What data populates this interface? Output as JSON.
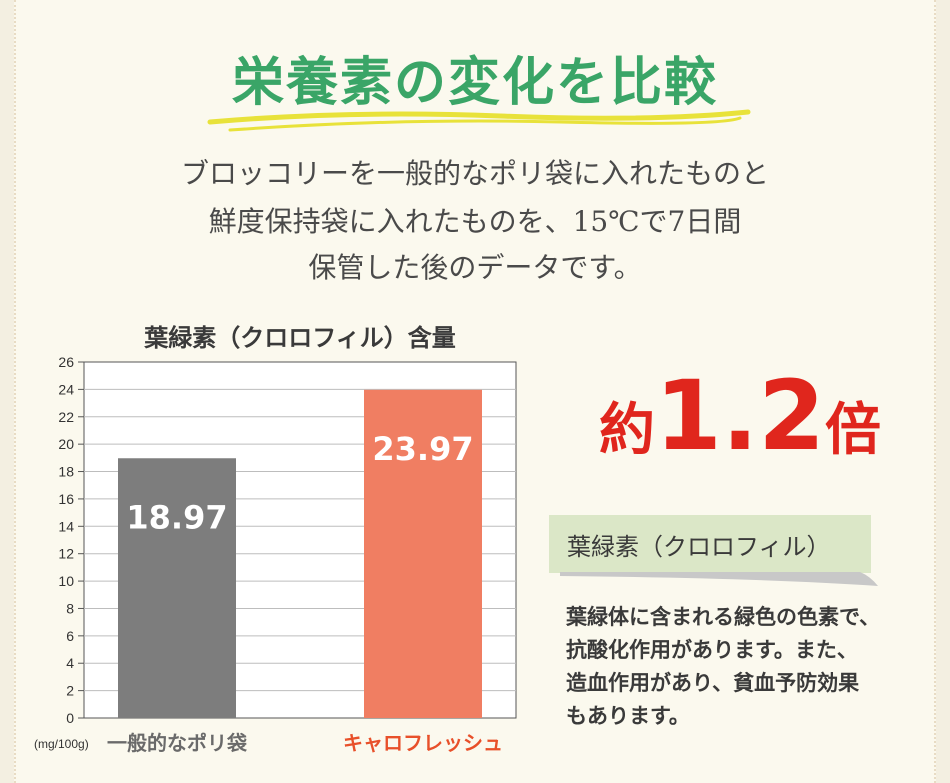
{
  "title": "栄養素の変化を比較",
  "intro": [
    "ブロッコリーを一般的なポリ袋に入れたものと",
    "鮮度保持袋に入れたものを、15℃で7日間",
    "保管した後のデータです。"
  ],
  "chart_data": {
    "type": "bar",
    "title": "葉緑素（クロロフィル）含量",
    "unit_label": "(mg/100g)",
    "categories": [
      "一般的なポリ袋",
      "キャロフレッシュ"
    ],
    "values": [
      18.97,
      23.97
    ],
    "value_labels": [
      "18.97",
      "23.97"
    ],
    "colors": [
      "#7d7d7d",
      "#f07e62"
    ],
    "category_colors": [
      "#6a6a6a",
      "#e8502a"
    ],
    "yticks": [
      0,
      2,
      4,
      6,
      8,
      10,
      12,
      14,
      16,
      18,
      20,
      22,
      24,
      26
    ],
    "ylim": [
      0,
      26
    ],
    "grid": true
  },
  "ratio": {
    "pre": "約",
    "num": "1.2",
    "post": "倍"
  },
  "info": {
    "heading": "葉緑素（クロロフィル）",
    "lines": [
      "葉緑体に含まれる緑色の色素で、",
      "抗酸化作用があります。また、",
      "造血作用があり、貧血予防効果",
      "もあります。"
    ]
  },
  "colors": {
    "title_green": "#3aa567",
    "accent_red": "#e0261d",
    "label_bg": "#dbe7c7"
  }
}
